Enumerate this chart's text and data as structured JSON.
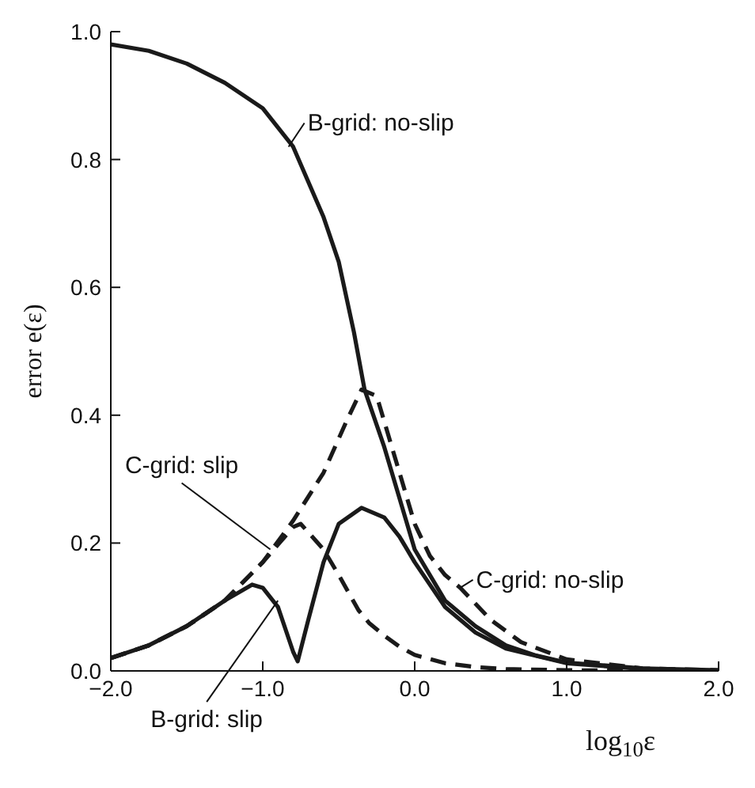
{
  "chart_data": {
    "type": "line",
    "xlabel": "log$_{10}$ε",
    "ylabel": "error e(ε)",
    "xlim": [
      -2,
      2
    ],
    "ylim": [
      0,
      1
    ],
    "xticks": [
      {
        "value": -2,
        "label": "−2.0"
      },
      {
        "value": -1,
        "label": "−1.0"
      },
      {
        "value": 0,
        "label": "0.0"
      },
      {
        "value": 1,
        "label": "1.0"
      },
      {
        "value": 2,
        "label": "2.0"
      }
    ],
    "yticks": [
      {
        "value": 0,
        "label": "0.0"
      },
      {
        "value": 0.2,
        "label": "0.2"
      },
      {
        "value": 0.4,
        "label": "0.4"
      },
      {
        "value": 0.6,
        "label": "0.6"
      },
      {
        "value": 0.8,
        "label": "0.8"
      },
      {
        "value": 1,
        "label": "1.0"
      }
    ],
    "marker": "none",
    "series": [
      {
        "color": "#1a1a1a",
        "line_style": "solid",
        "x": [
          -2,
          -1.75,
          -1.5,
          -1.25,
          -1,
          -0.8,
          -0.6,
          -0.5,
          -0.4,
          -0.33,
          -0.2,
          -0.1,
          0,
          0.2,
          0.4,
          0.6,
          0.8,
          1,
          1.5,
          2
        ],
        "values": [
          0.98,
          0.97,
          0.95,
          0.92,
          0.88,
          0.82,
          0.71,
          0.64,
          0.53,
          0.44,
          0.35,
          0.27,
          0.19,
          0.11,
          0.07,
          0.04,
          0.024,
          0.013,
          0.004,
          0.001
        ]
      },
      {
        "color": "#1a1a1a",
        "line_style": "solid",
        "x": [
          -2,
          -1.75,
          -1.5,
          -1.25,
          -1.07,
          -1,
          -0.9,
          -0.8,
          -0.77,
          -0.7,
          -0.6,
          -0.5,
          -0.35,
          -0.2,
          -0.1,
          0,
          0.2,
          0.4,
          0.6,
          1,
          1.5,
          2
        ],
        "values": [
          0.02,
          0.04,
          0.07,
          0.11,
          0.135,
          0.13,
          0.1,
          0.03,
          0.015,
          0.08,
          0.17,
          0.23,
          0.255,
          0.24,
          0.21,
          0.17,
          0.1,
          0.06,
          0.035,
          0.012,
          0.003,
          0
        ]
      },
      {
        "color": "#1a1a1a",
        "line_style": "dashed",
        "x": [
          -2,
          -1.75,
          -1.5,
          -1.25,
          -1.15,
          -1,
          -0.8,
          -0.75,
          -0.6,
          -0.5,
          -0.37,
          -0.3,
          -0.2,
          -0.1,
          0,
          0.2,
          0.4,
          0.6,
          1,
          2
        ],
        "values": [
          0.02,
          0.04,
          0.07,
          0.11,
          0.134,
          0.17,
          0.225,
          0.23,
          0.19,
          0.15,
          0.095,
          0.075,
          0.055,
          0.038,
          0.025,
          0.012,
          0.006,
          0.003,
          0.001,
          0
        ]
      },
      {
        "color": "#1a1a1a",
        "line_style": "dashed",
        "x": [
          -2,
          -1.75,
          -1.5,
          -1.25,
          -1.15,
          -1,
          -0.8,
          -0.6,
          -0.45,
          -0.35,
          -0.25,
          -0.2,
          -0.1,
          0,
          0.1,
          0.2,
          0.3,
          0.5,
          0.7,
          1,
          1.5,
          2
        ],
        "values": [
          0.02,
          0.04,
          0.07,
          0.11,
          0.134,
          0.17,
          0.235,
          0.31,
          0.39,
          0.44,
          0.43,
          0.39,
          0.31,
          0.23,
          0.18,
          0.15,
          0.13,
          0.08,
          0.045,
          0.018,
          0.004,
          0.001
        ]
      }
    ],
    "annotations": [
      {
        "text": "B-grid: no-slip",
        "x": -0.83,
        "y": 0.82
      },
      {
        "text": "C-grid: slip",
        "x": -0.95,
        "y": 0.19
      },
      {
        "text": "C-grid: no-slip",
        "x": 0.3,
        "y": 0.13
      },
      {
        "text": "B-grid: slip",
        "x": -0.9,
        "y": 0.11
      }
    ]
  }
}
